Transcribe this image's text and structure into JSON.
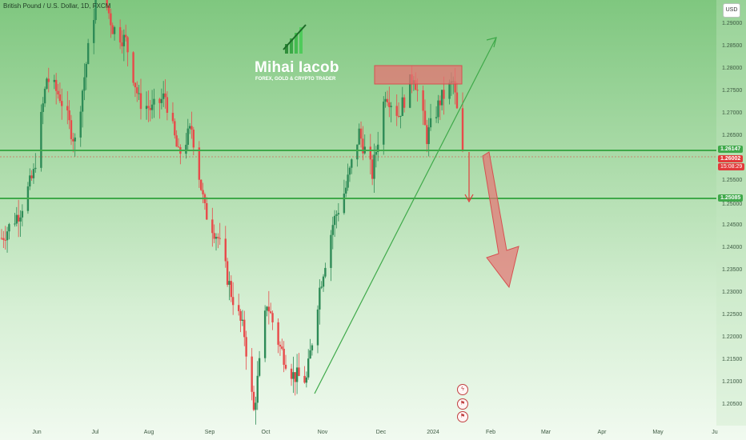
{
  "symbol": {
    "title": "British Pound / U.S. Dollar, 1D, FXCM"
  },
  "currency": "USD",
  "brand": {
    "name": "Mihai Iacob",
    "tagline": "FOREX, GOLD & CRYPTO TRADER"
  },
  "price_axis": {
    "ticks": [
      "1.29000",
      "1.28500",
      "1.28000",
      "1.27500",
      "1.27000",
      "1.26500",
      "1.25500",
      "1.25000",
      "1.24500",
      "1.24000",
      "1.23500",
      "1.23000",
      "1.22500",
      "1.22000",
      "1.21500",
      "1.21000",
      "1.20500"
    ],
    "levels": {
      "resistance": "1.26147",
      "current": "1.26002",
      "support": "1.25085"
    },
    "countdown": "15:08:29"
  },
  "time_axis": {
    "labels": [
      "Jun",
      "Jul",
      "Aug",
      "Sep",
      "Oct",
      "Nov",
      "Dec",
      "2024",
      "Feb",
      "Mar",
      "Apr",
      "May",
      "Ju"
    ]
  },
  "colors": {
    "up": "#2e8b57",
    "down": "#e84a4a",
    "levels": "#3fa94a",
    "zone": "#e57373"
  },
  "chart_data": {
    "type": "candlestick",
    "title": "British Pound / U.S. Dollar, 1D, FXCM",
    "y_range": [
      1.201,
      1.294
    ],
    "horizontal_levels": [
      1.26147,
      1.25085
    ],
    "last_price": 1.26002,
    "series": [
      {
        "x": "2023-05-22",
        "y": 1.242
      },
      {
        "x": "2023-06-01",
        "y": 1.248
      },
      {
        "x": "2023-06-08",
        "y": 1.256
      },
      {
        "x": "2023-06-15",
        "y": 1.277
      },
      {
        "x": "2023-06-22",
        "y": 1.273
      },
      {
        "x": "2023-06-30",
        "y": 1.263
      },
      {
        "x": "2023-07-07",
        "y": 1.283
      },
      {
        "x": "2023-07-13",
        "y": 1.299
      },
      {
        "x": "2023-07-20",
        "y": 1.288
      },
      {
        "x": "2023-07-27",
        "y": 1.285
      },
      {
        "x": "2023-08-03",
        "y": 1.272
      },
      {
        "x": "2023-08-10",
        "y": 1.27
      },
      {
        "x": "2023-08-17",
        "y": 1.273
      },
      {
        "x": "2023-08-24",
        "y": 1.26
      },
      {
        "x": "2023-08-31",
        "y": 1.266
      },
      {
        "x": "2023-09-07",
        "y": 1.248
      },
      {
        "x": "2023-09-14",
        "y": 1.242
      },
      {
        "x": "2023-09-21",
        "y": 1.23
      },
      {
        "x": "2023-09-28",
        "y": 1.221
      },
      {
        "x": "2023-10-03",
        "y": 1.204
      },
      {
        "x": "2023-10-10",
        "y": 1.228
      },
      {
        "x": "2023-10-17",
        "y": 1.218
      },
      {
        "x": "2023-10-24",
        "y": 1.212
      },
      {
        "x": "2023-10-31",
        "y": 1.211
      },
      {
        "x": "2023-11-07",
        "y": 1.231
      },
      {
        "x": "2023-11-14",
        "y": 1.245
      },
      {
        "x": "2023-11-21",
        "y": 1.253
      },
      {
        "x": "2023-11-28",
        "y": 1.265
      },
      {
        "x": "2023-12-05",
        "y": 1.256
      },
      {
        "x": "2023-12-12",
        "y": 1.274
      },
      {
        "x": "2023-12-19",
        "y": 1.269
      },
      {
        "x": "2023-12-27",
        "y": 1.278
      },
      {
        "x": "2024-01-03",
        "y": 1.264
      },
      {
        "x": "2024-01-10",
        "y": 1.272
      },
      {
        "x": "2024-01-17",
        "y": 1.276
      },
      {
        "x": "2024-01-22",
        "y": 1.26
      }
    ]
  }
}
